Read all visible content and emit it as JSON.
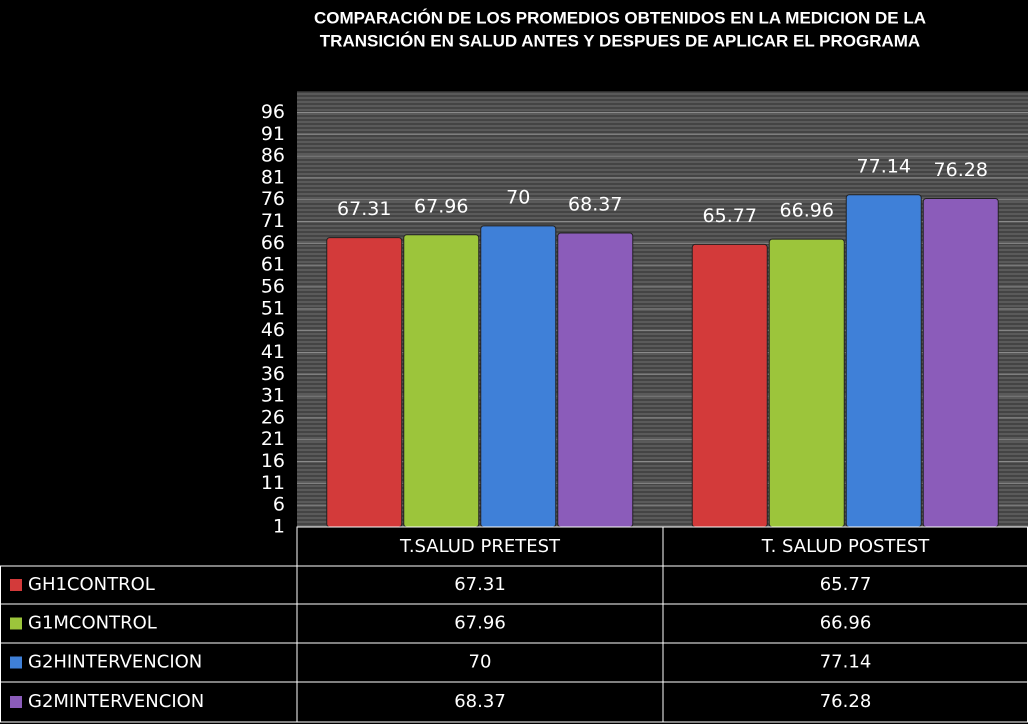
{
  "chart_data": {
    "type": "bar",
    "title": [
      "COMPARACIÓN DE LOS PROMEDIOS OBTENIDOS EN LA MEDICION DE LA",
      "TRANSICIÓN EN SALUD ANTES Y DESPUES DE APLICAR EL PROGRAMA"
    ],
    "categories": [
      "T.SALUD  PRETEST",
      "T. SALUD  POSTEST"
    ],
    "series": [
      {
        "name": "GH1CONTROL",
        "color": "#d33a3a",
        "values": [
          67.31,
          65.77
        ]
      },
      {
        "name": "G1MCONTROL",
        "color": "#9cc53b",
        "values": [
          67.96,
          66.96
        ]
      },
      {
        "name": "G2HINTERVENCION",
        "color": "#3f80d8",
        "values": [
          70,
          77.14
        ]
      },
      {
        "name": "G2MINTERVENCION",
        "color": "#8b5cba",
        "values": [
          68.37,
          76.28
        ]
      }
    ],
    "ylim": [
      1,
      100
    ],
    "yticks": [
      1,
      6,
      11,
      16,
      21,
      26,
      31,
      36,
      41,
      46,
      51,
      56,
      61,
      66,
      71,
      76,
      81,
      86,
      91,
      96
    ],
    "grid": true
  }
}
